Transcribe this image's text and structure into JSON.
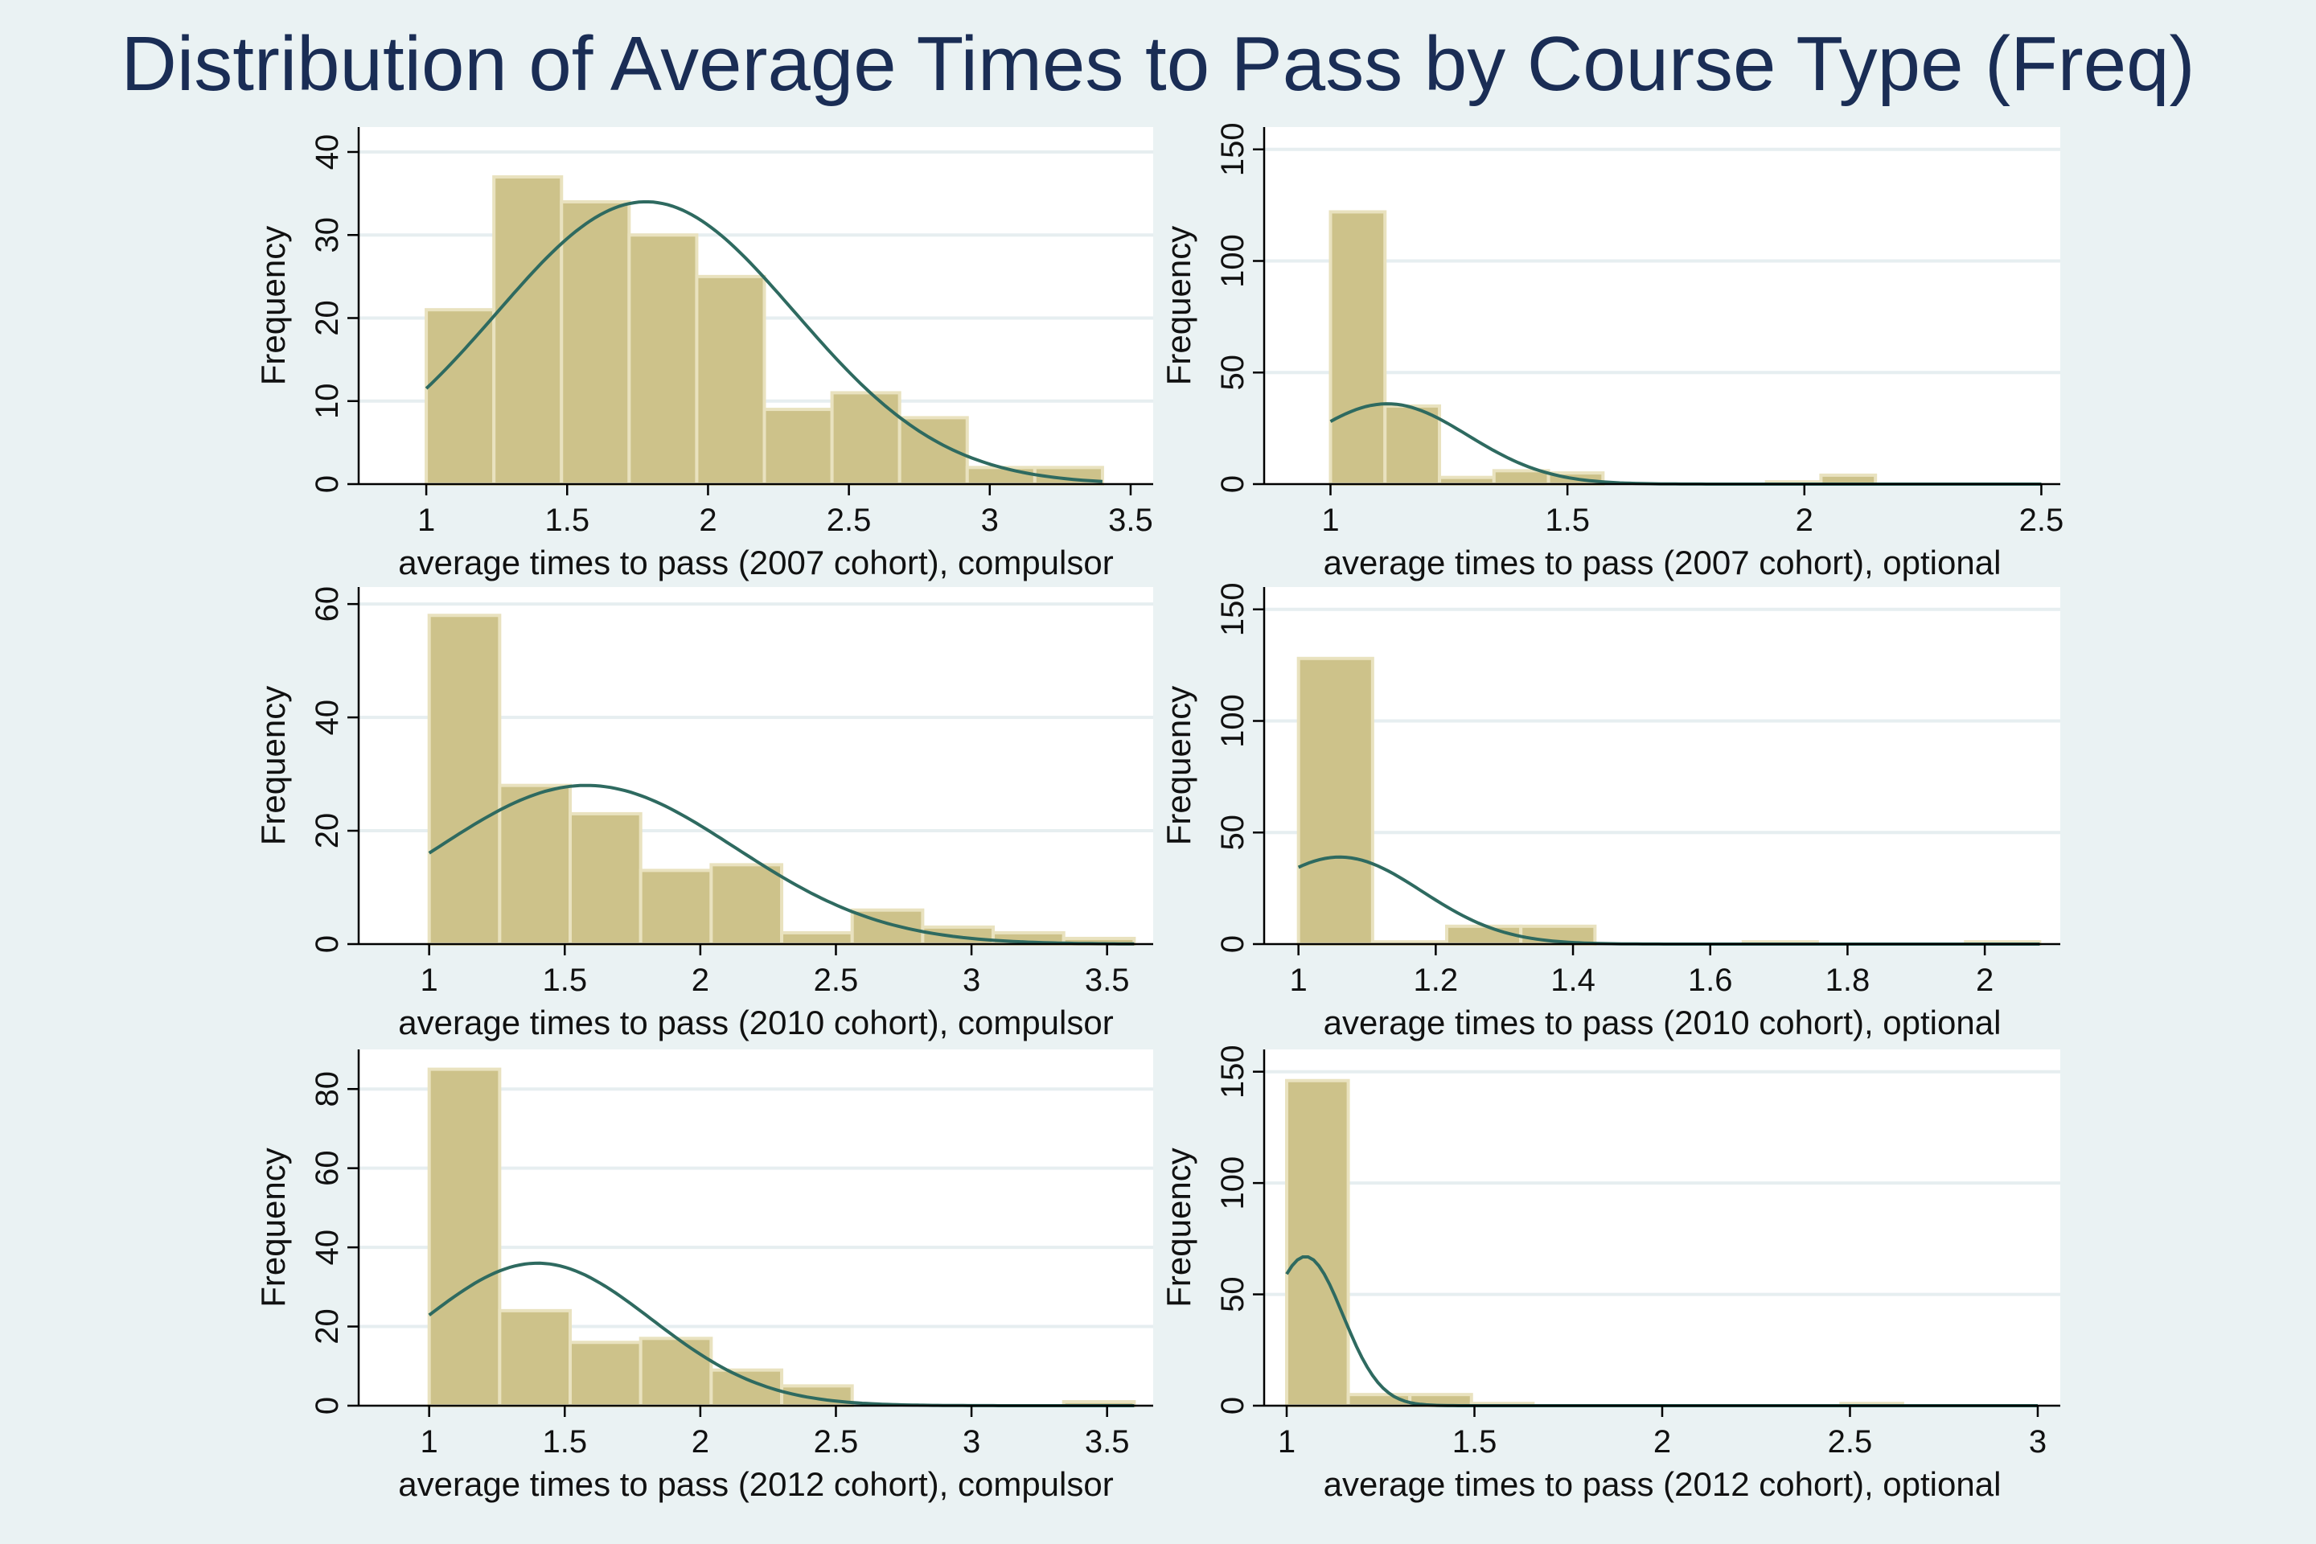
{
  "figure": {
    "title": "Distribution of Average Times to Pass by Course Type (Freq)",
    "colors": {
      "background": "#eaf2f3",
      "plot_background": "#ffffff",
      "bar_fill": "#cdc28a",
      "bar_edge": "#e9e2bf",
      "density_line": "#2e6a60",
      "grid": "#e6eef0",
      "title": "#1a2d55"
    }
  },
  "chart_data": [
    {
      "type": "bar",
      "xlabel": "average times to pass (2007 cohort), compulsor",
      "ylabel": "Frequency",
      "xlim": [
        0.76,
        3.58
      ],
      "ylim": [
        0,
        43
      ],
      "xticks": [
        1,
        1.5,
        2,
        2.5,
        3,
        3.5
      ],
      "yticks": [
        0,
        10,
        20,
        30,
        40
      ],
      "grid": true,
      "bins": [
        {
          "x0": 1.0,
          "x1": 1.24,
          "value": 21
        },
        {
          "x0": 1.24,
          "x1": 1.48,
          "value": 37
        },
        {
          "x0": 1.48,
          "x1": 1.72,
          "value": 34
        },
        {
          "x0": 1.72,
          "x1": 1.96,
          "value": 30
        },
        {
          "x0": 1.96,
          "x1": 2.2,
          "value": 25
        },
        {
          "x0": 2.2,
          "x1": 2.44,
          "value": 9
        },
        {
          "x0": 2.44,
          "x1": 2.68,
          "value": 11
        },
        {
          "x0": 2.68,
          "x1": 2.92,
          "value": 8
        },
        {
          "x0": 2.92,
          "x1": 3.16,
          "value": 2
        },
        {
          "x0": 3.16,
          "x1": 3.4,
          "value": 2
        }
      ],
      "density": {
        "mean": 1.78,
        "sd": 0.53,
        "peak": 34,
        "x_start": 1.0,
        "x_end": 3.4
      }
    },
    {
      "type": "bar",
      "xlabel": "average times to pass (2007 cohort), optional",
      "ylabel": "Frequency",
      "xlim": [
        0.86,
        2.54
      ],
      "ylim": [
        0,
        160
      ],
      "xticks": [
        1,
        1.5,
        2,
        2.5
      ],
      "yticks": [
        0,
        50,
        100,
        150
      ],
      "grid": true,
      "bins": [
        {
          "x0": 1.0,
          "x1": 1.115,
          "value": 122
        },
        {
          "x0": 1.115,
          "x1": 1.23,
          "value": 35
        },
        {
          "x0": 1.23,
          "x1": 1.345,
          "value": 3
        },
        {
          "x0": 1.345,
          "x1": 1.46,
          "value": 6
        },
        {
          "x0": 1.46,
          "x1": 1.575,
          "value": 5
        },
        {
          "x0": 1.575,
          "x1": 1.69,
          "value": 0
        },
        {
          "x0": 1.69,
          "x1": 1.805,
          "value": 0
        },
        {
          "x0": 1.805,
          "x1": 1.92,
          "value": 0
        },
        {
          "x0": 1.92,
          "x1": 2.035,
          "value": 1
        },
        {
          "x0": 2.035,
          "x1": 2.15,
          "value": 4
        }
      ],
      "density": {
        "mean": 1.12,
        "sd": 0.17,
        "peak": 36,
        "x_start": 1.0,
        "x_end": 2.5
      }
    },
    {
      "type": "bar",
      "xlabel": "average times to pass (2010 cohort), compulsor",
      "ylabel": "Frequency",
      "xlim": [
        0.74,
        3.67
      ],
      "ylim": [
        0,
        63
      ],
      "xticks": [
        1,
        1.5,
        2,
        2.5,
        3,
        3.5
      ],
      "yticks": [
        0,
        20,
        40,
        60
      ],
      "grid": true,
      "bins": [
        {
          "x0": 1.0,
          "x1": 1.26,
          "value": 58
        },
        {
          "x0": 1.26,
          "x1": 1.52,
          "value": 28
        },
        {
          "x0": 1.52,
          "x1": 1.78,
          "value": 23
        },
        {
          "x0": 1.78,
          "x1": 2.04,
          "value": 13
        },
        {
          "x0": 2.04,
          "x1": 2.3,
          "value": 14
        },
        {
          "x0": 2.3,
          "x1": 2.56,
          "value": 2
        },
        {
          "x0": 2.56,
          "x1": 2.82,
          "value": 6
        },
        {
          "x0": 2.82,
          "x1": 3.08,
          "value": 3
        },
        {
          "x0": 3.08,
          "x1": 3.34,
          "value": 2
        },
        {
          "x0": 3.34,
          "x1": 3.6,
          "value": 1
        }
      ],
      "density": {
        "mean": 1.58,
        "sd": 0.55,
        "peak": 28,
        "x_start": 1.0,
        "x_end": 3.6
      }
    },
    {
      "type": "bar",
      "xlabel": "average times to pass (2010 cohort), optional",
      "ylabel": "Frequency",
      "xlim": [
        0.95,
        2.11
      ],
      "ylim": [
        0,
        160
      ],
      "xticks": [
        1,
        1.2,
        1.4,
        1.6,
        1.8,
        2
      ],
      "yticks": [
        0,
        50,
        100,
        150
      ],
      "grid": true,
      "bins": [
        {
          "x0": 1.0,
          "x1": 1.108,
          "value": 128
        },
        {
          "x0": 1.108,
          "x1": 1.216,
          "value": 1
        },
        {
          "x0": 1.216,
          "x1": 1.324,
          "value": 8
        },
        {
          "x0": 1.324,
          "x1": 1.432,
          "value": 8
        },
        {
          "x0": 1.432,
          "x1": 1.54,
          "value": 0
        },
        {
          "x0": 1.54,
          "x1": 1.648,
          "value": 0
        },
        {
          "x0": 1.648,
          "x1": 1.756,
          "value": 1
        },
        {
          "x0": 1.756,
          "x1": 1.864,
          "value": 0
        },
        {
          "x0": 1.864,
          "x1": 1.972,
          "value": 0
        },
        {
          "x0": 1.972,
          "x1": 2.08,
          "value": 1
        }
      ],
      "density": {
        "mean": 1.06,
        "sd": 0.12,
        "peak": 39,
        "x_start": 1.0,
        "x_end": 2.08
      }
    },
    {
      "type": "bar",
      "xlabel": "average times to pass (2012 cohort), compulsor",
      "ylabel": "Frequency",
      "xlim": [
        0.74,
        3.67
      ],
      "ylim": [
        0,
        90
      ],
      "xticks": [
        1,
        1.5,
        2,
        2.5,
        3,
        3.5
      ],
      "yticks": [
        0,
        20,
        40,
        60,
        80
      ],
      "grid": true,
      "bins": [
        {
          "x0": 1.0,
          "x1": 1.26,
          "value": 85
        },
        {
          "x0": 1.26,
          "x1": 1.52,
          "value": 24
        },
        {
          "x0": 1.52,
          "x1": 1.78,
          "value": 16
        },
        {
          "x0": 1.78,
          "x1": 2.04,
          "value": 17
        },
        {
          "x0": 2.04,
          "x1": 2.3,
          "value": 9
        },
        {
          "x0": 2.3,
          "x1": 2.56,
          "value": 5
        },
        {
          "x0": 2.56,
          "x1": 2.82,
          "value": 0
        },
        {
          "x0": 2.82,
          "x1": 3.08,
          "value": 0
        },
        {
          "x0": 3.08,
          "x1": 3.34,
          "value": 0
        },
        {
          "x0": 3.34,
          "x1": 3.6,
          "value": 1
        }
      ],
      "density": {
        "mean": 1.4,
        "sd": 0.42,
        "peak": 36,
        "x_start": 1.0,
        "x_end": 3.6
      }
    },
    {
      "type": "bar",
      "xlabel": "average times to pass (2012 cohort), optional",
      "ylabel": "Frequency",
      "xlim": [
        0.94,
        3.06
      ],
      "ylim": [
        0,
        160
      ],
      "xticks": [
        1,
        1.5,
        2,
        2.5,
        3
      ],
      "yticks": [
        0,
        50,
        100,
        150
      ],
      "grid": true,
      "bins": [
        {
          "x0": 1.0,
          "x1": 1.164,
          "value": 146
        },
        {
          "x0": 1.164,
          "x1": 1.328,
          "value": 5
        },
        {
          "x0": 1.328,
          "x1": 1.492,
          "value": 5
        },
        {
          "x0": 1.492,
          "x1": 1.656,
          "value": 1
        },
        {
          "x0": 1.656,
          "x1": 1.82,
          "value": 0
        },
        {
          "x0": 1.82,
          "x1": 1.984,
          "value": 0
        },
        {
          "x0": 1.984,
          "x1": 2.148,
          "value": 0
        },
        {
          "x0": 2.148,
          "x1": 2.312,
          "value": 0
        },
        {
          "x0": 2.312,
          "x1": 2.476,
          "value": 0
        },
        {
          "x0": 2.476,
          "x1": 2.64,
          "value": 1
        }
      ],
      "density": {
        "mean": 1.05,
        "sd": 0.1,
        "peak": 67,
        "x_start": 1.0,
        "x_end": 3.0
      }
    }
  ]
}
